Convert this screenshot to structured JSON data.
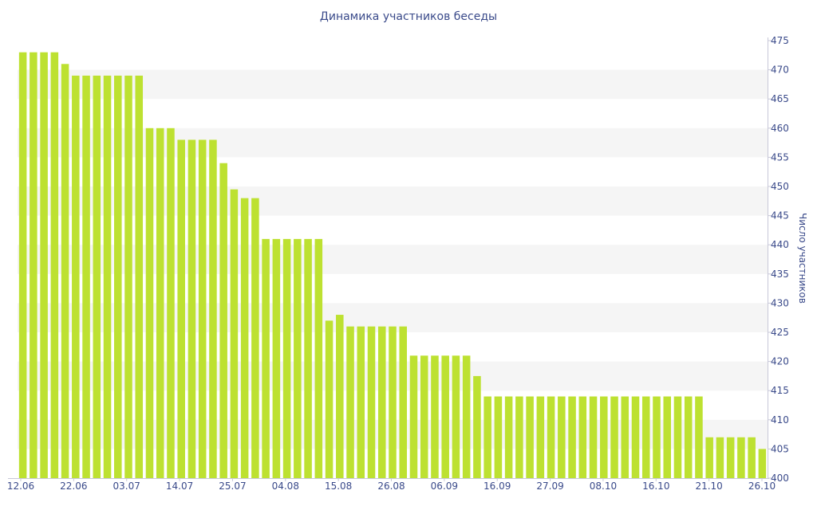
{
  "chart_data": {
    "type": "bar",
    "title": "Динамика участников беседы",
    "xlabel": "",
    "ylabel": "Число участников",
    "ylim": [
      400,
      475
    ],
    "yticks": [
      400,
      405,
      410,
      415,
      420,
      425,
      430,
      435,
      440,
      445,
      450,
      455,
      460,
      465,
      470,
      475
    ],
    "x_tick_labels": [
      "12.06",
      "22.06",
      "03.07",
      "14.07",
      "25.07",
      "04.08",
      "15.08",
      "26.08",
      "06.09",
      "16.09",
      "27.09",
      "08.10",
      "16.10",
      "21.10",
      "26.10"
    ],
    "y_axis_position": "right",
    "grid": "alternating horizontal bands",
    "bar_color": "#bde131",
    "series": [
      {
        "values": [
          473,
          473,
          473,
          473,
          471,
          469,
          469,
          469,
          469,
          469,
          469,
          469,
          460,
          460,
          460,
          458,
          458,
          458,
          458,
          454,
          449.5,
          448,
          448,
          441,
          441,
          441,
          441,
          441,
          441,
          427,
          428,
          426,
          426,
          426,
          426,
          426,
          426,
          421,
          421,
          421,
          421,
          421,
          421,
          417.5,
          414,
          414,
          414,
          414,
          414,
          414,
          414,
          414,
          414,
          414,
          414,
          414,
          414,
          414,
          414,
          414,
          414,
          414,
          414,
          414,
          414,
          407,
          407,
          407,
          407,
          407,
          405
        ]
      }
    ]
  }
}
